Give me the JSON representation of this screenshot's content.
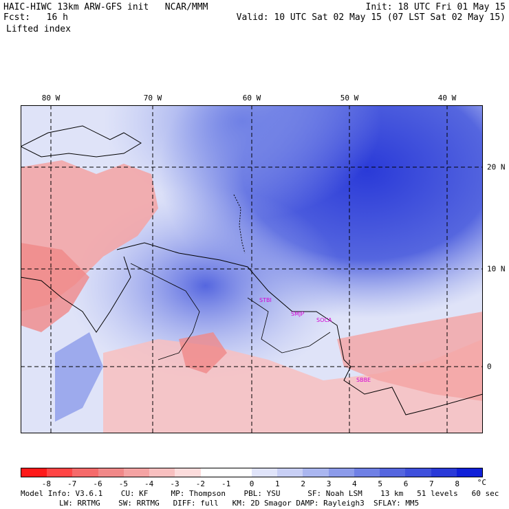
{
  "header": {
    "left_line1": "HAIC-HIWC 13km ARW-GFS init   NCAR/MMM",
    "left_line2": "Fcst:   16 h",
    "left_line3": "Lifted index",
    "right_line1": "Init: 18 UTC Fri 01 May 15",
    "right_line2": "Valid: 10 UTC Sat 02 May 15 (07 LST Sat 02 May 15)"
  },
  "map": {
    "lon_labels": [
      "80 W",
      "70 W",
      "60 W",
      "50 W",
      "40 W"
    ],
    "lat_labels": [
      "20 N",
      "10 N",
      "0"
    ],
    "place_labels": [
      "STBI",
      "SMJP",
      "SOCA",
      "SBBE"
    ],
    "place_label_color": "#d400d4"
  },
  "colorbar": {
    "colors": [
      "#ff1a1a",
      "#ff4545",
      "#f56a6a",
      "#f08888",
      "#f4a3a3",
      "#f8c0c0",
      "#fcdcdc",
      "#ffffff",
      "#ffffff",
      "#e0e4fa",
      "#c8cff5",
      "#aab6f0",
      "#8c9bea",
      "#6f80e5",
      "#5566df",
      "#3f50dc",
      "#2a3ad8",
      "#1020d8"
    ],
    "tick_labels": [
      "-8",
      "-7",
      "-6",
      "-5",
      "-4",
      "-3",
      "-2",
      "-1",
      "0",
      "1",
      "2",
      "3",
      "4",
      "5",
      "6",
      "7",
      "8"
    ],
    "unit": "°C"
  },
  "footer": {
    "line1": "Model Info: V3.6.1    CU: KF     MP: Thompson    PBL: YSU      SF: Noah LSM    13 km   51 levels   60 sec",
    "line2": "LW: RRTMG    SW: RRTMG   DIFF: full   KM: 2D Smagor DAMP: Rayleigh3  SFLAY: MM5"
  }
}
